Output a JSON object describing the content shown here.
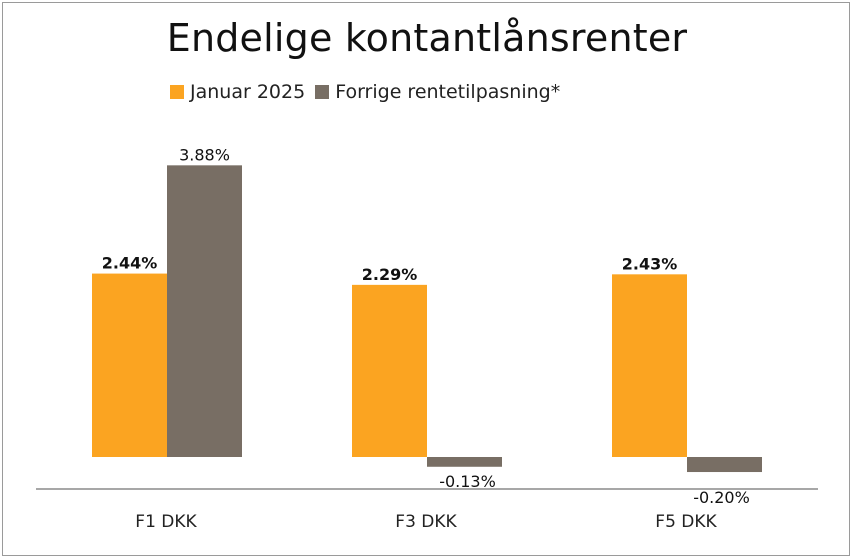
{
  "chart_data": {
    "type": "bar",
    "title": "Endelige kontantlånsrenter",
    "categories": [
      "F1 DKK",
      "F3 DKK",
      "F5 DKK"
    ],
    "series": [
      {
        "name": "Januar 2025",
        "values": [
          2.44,
          2.29,
          2.43
        ],
        "labels": [
          "2.44%",
          "2.29%",
          "2.43%"
        ],
        "color": "#FBA421",
        "label_bold": true
      },
      {
        "name": "Forrige rentetilpasning*",
        "values": [
          3.88,
          -0.13,
          -0.2
        ],
        "labels": [
          "3.88%",
          "-0.13%",
          "-0.20%"
        ],
        "color": "#786E64",
        "label_bold": false
      }
    ],
    "ylim": [
      -0.45,
      4.35
    ],
    "grid": false,
    "legend_position": "top"
  }
}
